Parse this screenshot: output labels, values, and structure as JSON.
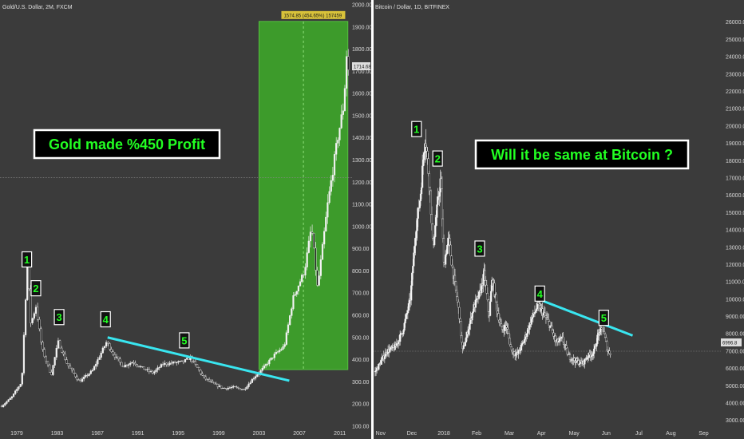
{
  "chart_data": [
    {
      "type": "candlestick",
      "title": "Gold/U.S. Dollar, 2M, FXCM",
      "ylim": [
        60,
        2000
      ],
      "y_ticks": [
        100,
        200,
        300,
        400,
        500,
        600,
        700,
        800,
        900,
        1000,
        1100,
        1200,
        1300,
        1400,
        1500,
        1600,
        1700,
        1800,
        1900,
        2000
      ],
      "x_ticks": [
        "1979",
        "1983",
        "1987",
        "1991",
        "1995",
        "1999",
        "2003",
        "2007",
        "2011"
      ],
      "xlim": [
        1977.5,
        2011.9
      ],
      "price_path": [
        [
          1977.5,
          190
        ],
        [
          1978.5,
          230
        ],
        [
          1979.5,
          300
        ],
        [
          1980.05,
          850
        ],
        [
          1980.4,
          560
        ],
        [
          1980.9,
          640
        ],
        [
          1981.5,
          450
        ],
        [
          1982.4,
          330
        ],
        [
          1983.1,
          480
        ],
        [
          1984.0,
          380
        ],
        [
          1985.2,
          300
        ],
        [
          1986.5,
          350
        ],
        [
          1987.9,
          480
        ],
        [
          1988.5,
          430
        ],
        [
          1989.5,
          370
        ],
        [
          1990.5,
          390
        ],
        [
          1991.5,
          360
        ],
        [
          1992.5,
          340
        ],
        [
          1993.5,
          380
        ],
        [
          1994.5,
          385
        ],
        [
          1995.5,
          390
        ],
        [
          1996.2,
          410
        ],
        [
          1997.5,
          320
        ],
        [
          1998.5,
          290
        ],
        [
          1999.5,
          270
        ],
        [
          2000.5,
          275
        ],
        [
          2001.5,
          265
        ],
        [
          2002.5,
          320
        ],
        [
          2003.2,
          350
        ],
        [
          2004.5,
          420
        ],
        [
          2005.5,
          460
        ],
        [
          2006.4,
          680
        ],
        [
          2007.5,
          800
        ],
        [
          2008.2,
          1000
        ],
        [
          2008.8,
          720
        ],
        [
          2009.8,
          1100
        ],
        [
          2010.8,
          1400
        ],
        [
          2011.4,
          1550
        ],
        [
          2011.7,
          1800
        ],
        [
          2011.8,
          1700
        ],
        [
          2011.9,
          1715
        ]
      ],
      "waves": [
        {
          "label": "1",
          "x": 1980.0,
          "y": 850
        },
        {
          "label": "2",
          "x": 1980.9,
          "y": 720
        },
        {
          "label": "3",
          "x": 1983.2,
          "y": 590
        },
        {
          "label": "4",
          "x": 1987.8,
          "y": 580
        },
        {
          "label": "5",
          "x": 1995.6,
          "y": 485
        }
      ],
      "trendline": {
        "x1": 1988.0,
        "y1": 500,
        "x2": 2006.0,
        "y2": 305
      },
      "profit_box": {
        "x1": 2003.0,
        "x2": 2011.8,
        "y_low": 355,
        "y_high": 1925,
        "label": "1574.85 (454.65%) 157459"
      },
      "current_price": "1714.68",
      "hline": 1220,
      "annotation": "Gold made %450 Profit"
    },
    {
      "type": "candlestick",
      "title": "Bitcoin / Dollar, 1D, BITFINEX",
      "ylim": [
        2250,
        27000
      ],
      "y_ticks": [
        3000,
        4000,
        5000,
        6000,
        7000,
        8000,
        9000,
        10000,
        11000,
        12000,
        13000,
        14000,
        15000,
        16000,
        17000,
        18000,
        19000,
        20000,
        21000,
        22000,
        23000,
        24000,
        25000,
        26000
      ],
      "x_ticks": [
        "Nov",
        "Dec",
        "2018",
        "Feb",
        "Mar",
        "Apr",
        "May",
        "Jun",
        "Jul",
        "Aug",
        "Sep"
      ],
      "xlim": [
        0,
        310
      ],
      "price_path": [
        [
          0,
          5800
        ],
        [
          15,
          7000
        ],
        [
          25,
          7200
        ],
        [
          35,
          8100
        ],
        [
          45,
          10000
        ],
        [
          52,
          14000
        ],
        [
          58,
          16000
        ],
        [
          64,
          19500
        ],
        [
          70,
          16500
        ],
        [
          74,
          13000
        ],
        [
          80,
          15500
        ],
        [
          84,
          17000
        ],
        [
          88,
          12000
        ],
        [
          94,
          13500
        ],
        [
          100,
          11500
        ],
        [
          105,
          10000
        ],
        [
          108,
          9000
        ],
        [
          112,
          7000
        ],
        [
          118,
          8000
        ],
        [
          126,
          9500
        ],
        [
          134,
          10300
        ],
        [
          140,
          11500
        ],
        [
          146,
          9000
        ],
        [
          150,
          11200
        ],
        [
          156,
          9500
        ],
        [
          162,
          8200
        ],
        [
          168,
          8500
        ],
        [
          175,
          7000
        ],
        [
          182,
          6800
        ],
        [
          190,
          7500
        ],
        [
          200,
          8800
        ],
        [
          208,
          9600
        ],
        [
          214,
          9300
        ],
        [
          224,
          8500
        ],
        [
          232,
          7500
        ],
        [
          240,
          7700
        ],
        [
          248,
          6700
        ],
        [
          258,
          6400
        ],
        [
          266,
          6300
        ],
        [
          272,
          6700
        ],
        [
          280,
          6900
        ],
        [
          286,
          8000
        ],
        [
          292,
          8300
        ],
        [
          298,
          7000
        ],
        [
          302,
          6900
        ]
      ],
      "waves": [
        {
          "label": "1",
          "x": 53,
          "y": 19800
        },
        {
          "label": "2",
          "x": 80,
          "y": 18100
        },
        {
          "label": "3",
          "x": 134,
          "y": 12900
        },
        {
          "label": "4",
          "x": 211,
          "y": 10300
        },
        {
          "label": "5",
          "x": 293,
          "y": 8900
        }
      ],
      "trendline": {
        "x1": 215,
        "y1": 9900,
        "x2": 330,
        "y2": 7900
      },
      "current_price": "6996.8",
      "hline": 6997,
      "annotation": "Will it be same at Bitcoin ?"
    }
  ]
}
